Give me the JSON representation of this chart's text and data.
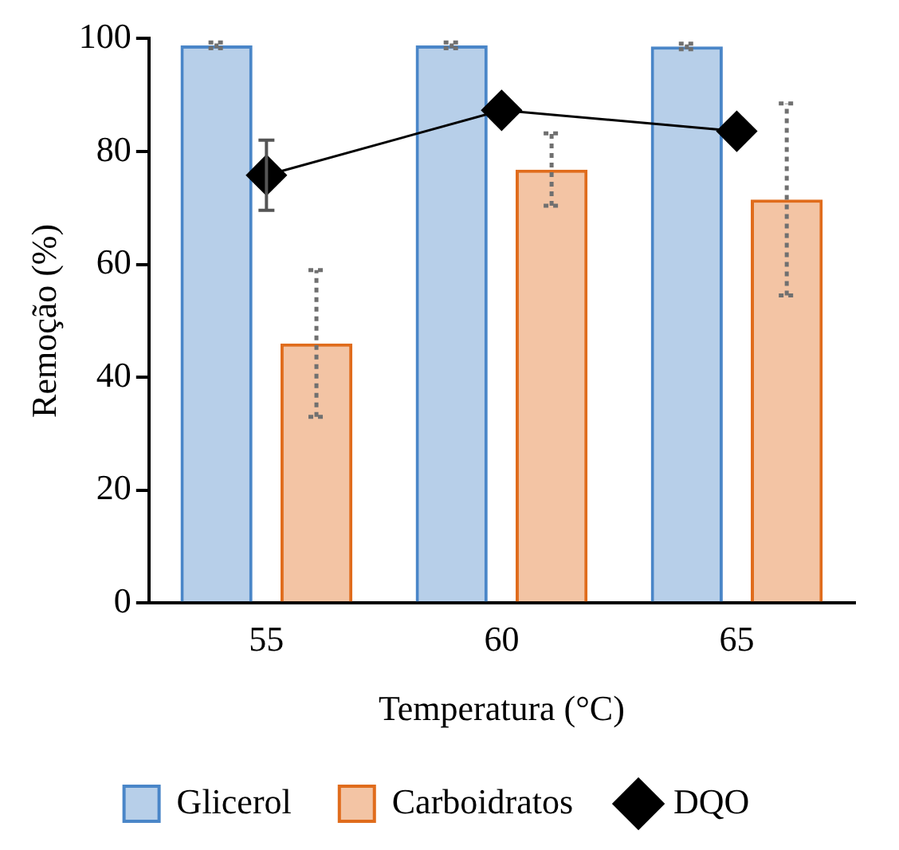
{
  "chart_data": {
    "type": "bar",
    "xlabel": "Temperatura (°C)",
    "ylabel": "Remoção (%)",
    "categories": [
      "55",
      "60",
      "65"
    ],
    "series": [
      {
        "name": "Glicerol",
        "color": "#4a86c8",
        "values": [
          98.8,
          98.8,
          98.6
        ],
        "errors": [
          0.5,
          0.5,
          0.5
        ]
      },
      {
        "name": "Carboidratos",
        "color": "#e06c1c",
        "values": [
          46.0,
          76.8,
          71.5
        ],
        "errors": [
          13,
          6.4,
          17
        ]
      },
      {
        "name": "DQO",
        "type": "line",
        "color": "#000000",
        "values": [
          75.8,
          87.3,
          83.6
        ],
        "errors": [
          6.2,
          null,
          null
        ],
        "marker": "diamond"
      }
    ],
    "ylim": [
      0,
      100
    ],
    "yticks": [
      0,
      20,
      40,
      60,
      80,
      100
    ],
    "grid": false,
    "legend": "bottom"
  }
}
